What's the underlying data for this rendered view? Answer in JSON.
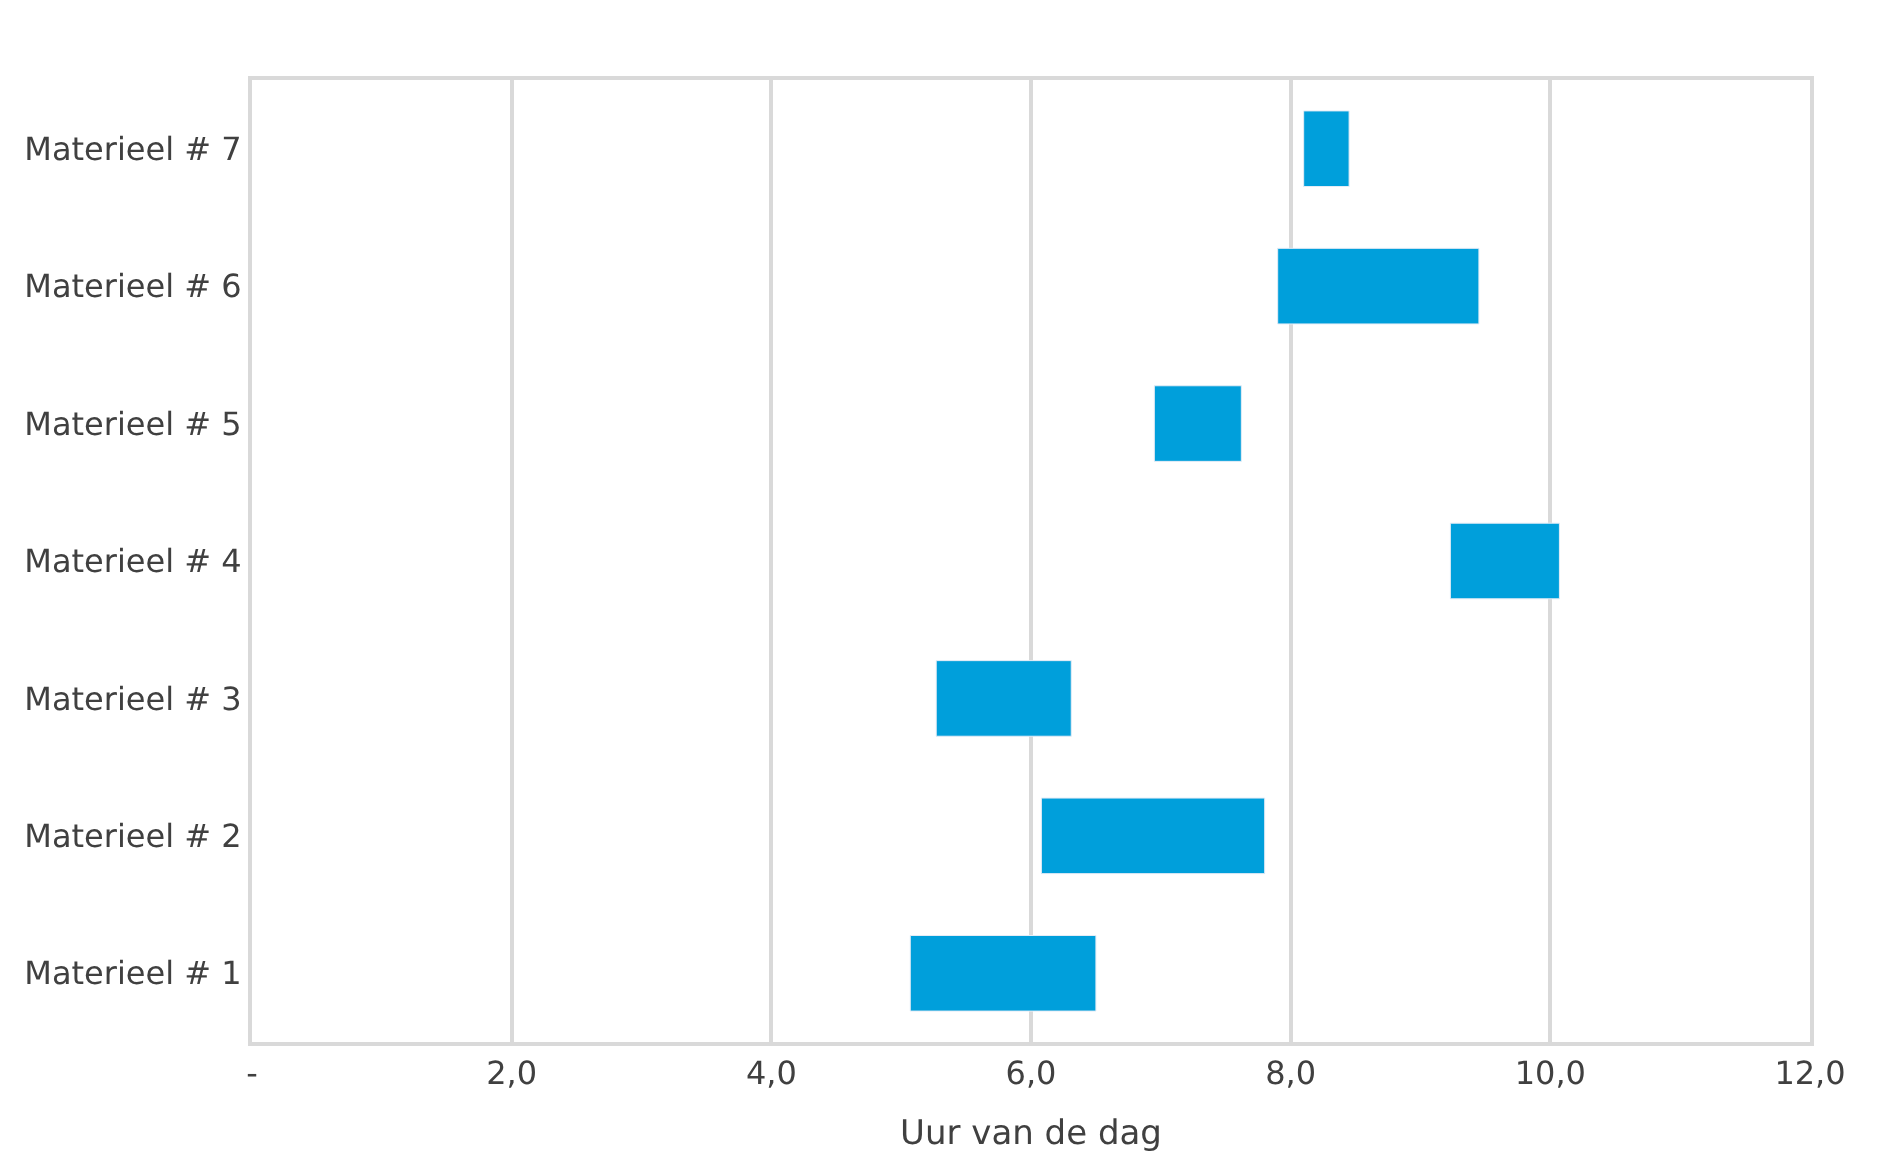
{
  "chart_data": {
    "type": "bar",
    "orientation": "horizontal",
    "categories": [
      "Materieel # 7",
      "Materieel # 6",
      "Materieel # 5",
      "Materieel # 4",
      "Materieel # 3",
      "Materieel # 2",
      "Materieel # 1"
    ],
    "base": [
      8.1,
      7.9,
      6.95,
      9.23,
      5.27,
      6.08,
      5.07
    ],
    "values": [
      0.35,
      1.55,
      0.67,
      0.84,
      1.04,
      1.72,
      1.43
    ],
    "color": "#009fdb",
    "xlabel": "Uur van de dag",
    "xlim": [
      0,
      12
    ],
    "xticks": [
      {
        "value": 0,
        "label": "-"
      },
      {
        "value": 2,
        "label": "2,0"
      },
      {
        "value": 4,
        "label": "4,0"
      },
      {
        "value": 6,
        "label": "6,0"
      },
      {
        "value": 8,
        "label": "8,0"
      },
      {
        "value": 10,
        "label": "10,0"
      },
      {
        "value": 12,
        "label": "12,0"
      }
    ],
    "grid": "x"
  }
}
